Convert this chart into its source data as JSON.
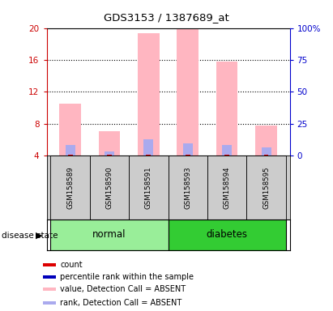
{
  "title": "GDS3153 / 1387689_at",
  "samples": [
    "GSM158589",
    "GSM158590",
    "GSM158591",
    "GSM158593",
    "GSM158594",
    "GSM158595"
  ],
  "bar_bottom": 4,
  "pink_tops": [
    10.5,
    7.0,
    19.3,
    20.0,
    15.8,
    7.8
  ],
  "blue_tops": [
    5.3,
    4.5,
    6.0,
    5.5,
    5.3,
    5.0
  ],
  "pink_color": "#FFB6C1",
  "blue_color": "#AAAAEE",
  "red_color": "#DD0000",
  "dark_blue_color": "#0000BB",
  "ylim_left": [
    4,
    20
  ],
  "ylim_right": [
    0,
    100
  ],
  "yticks_left": [
    4,
    8,
    12,
    16,
    20
  ],
  "yticks_right": [
    0,
    25,
    50,
    75,
    100
  ],
  "yticklabels_right": [
    "0",
    "25",
    "50",
    "75",
    "100%"
  ],
  "left_axis_color": "#CC0000",
  "right_axis_color": "#0000CC",
  "normal_color": "#99EE99",
  "diabetes_color": "#33CC33",
  "sample_box_color": "#CCCCCC",
  "legend_items": [
    {
      "color": "#DD0000",
      "label": "count"
    },
    {
      "color": "#0000BB",
      "label": "percentile rank within the sample"
    },
    {
      "color": "#FFB6C1",
      "label": "value, Detection Call = ABSENT"
    },
    {
      "color": "#AAAAEE",
      "label": "rank, Detection Call = ABSENT"
    }
  ]
}
